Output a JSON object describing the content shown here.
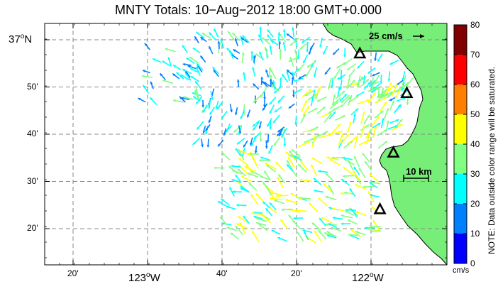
{
  "title": "MNTY Totals: 10−Aug−2012 18:00 GMT+0.000",
  "map": {
    "land_color": "#77ee77",
    "grid_color": "#888888",
    "lat_labels": [
      {
        "text": "37°N",
        "lat": 37.0,
        "major": true
      },
      {
        "text": "50'",
        "lat": 36.8333,
        "major": false
      },
      {
        "text": "40'",
        "lat": 36.6667,
        "major": false
      },
      {
        "text": "30'",
        "lat": 36.5,
        "major": false
      },
      {
        "text": "20'",
        "lat": 36.3333,
        "major": false
      }
    ],
    "lon_labels": [
      {
        "text": "20'",
        "lon": -123.3333,
        "major": false
      },
      {
        "text": "123°W",
        "lon": -123.0,
        "major": true
      },
      {
        "text": "40'",
        "lon": -122.6667,
        "major": false
      },
      {
        "text": "20'",
        "lon": -122.3333,
        "major": false
      },
      {
        "text": "122°W",
        "lon": -122.0,
        "major": true
      }
    ],
    "scale_vector_label": "25 cm/s",
    "scale_bar_label": "10 km",
    "stations": [
      {
        "name": "station-1",
        "lon": -122.05,
        "lat": 36.95
      },
      {
        "name": "station-2",
        "lon": -121.84,
        "lat": 36.81
      },
      {
        "name": "station-3",
        "lon": -121.9,
        "lat": 36.6
      },
      {
        "name": "station-4",
        "lon": -121.96,
        "lat": 36.4
      }
    ]
  },
  "colorbar": {
    "units": "cm/s",
    "note": "NOTE: Data outside color range will be saturated.",
    "ticks": [
      "0",
      "10",
      "20",
      "30",
      "40",
      "50",
      "60",
      "70",
      "80"
    ],
    "colors": [
      "#0000ff",
      "#0080ff",
      "#00ffff",
      "#80ff80",
      "#ffff00",
      "#ff8000",
      "#ff0000",
      "#800000"
    ]
  }
}
